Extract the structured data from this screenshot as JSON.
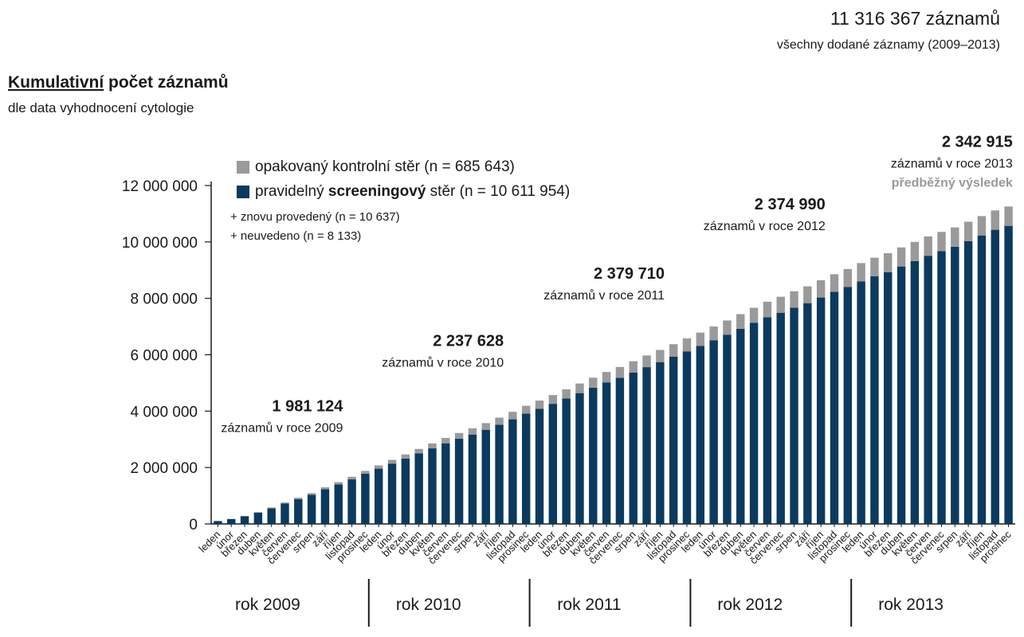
{
  "header": {
    "total": "11 316 367 záznamů",
    "subtitle": "všechny dodané záznamy (2009–2013)"
  },
  "title_underlined": "Kumulativní",
  "title_rest": " počet záznamů",
  "subtitle": "dle data vyhodnocení cytologie",
  "legend": {
    "grey_label": "opakovaný kontrolní stěr (n = 685 643)",
    "blue_label_a": "pravidelný ",
    "blue_label_b": "screeningový",
    "blue_label_c": " stěr (n = 10 611 954)",
    "note1": "+ znovu provedený (n = 10 637)",
    "note2": "+ neuvedeno (n = 8 133)"
  },
  "colors": {
    "screening": "#0b3a5e",
    "control": "#9a9a9a",
    "axis": "#1a1a1a"
  },
  "chart_data": {
    "type": "bar",
    "stacked": true,
    "ylim": [
      0,
      12000000
    ],
    "yticks": [
      "0",
      "2 000 000",
      "4 000 000",
      "6 000 000",
      "8 000 000",
      "10 000 000",
      "12 000 000"
    ],
    "ytick_values": [
      0,
      2000000,
      4000000,
      6000000,
      8000000,
      10000000,
      12000000
    ],
    "month_labels": [
      "leden",
      "únor",
      "březen",
      "duben",
      "květen",
      "červen",
      "červenec",
      "srpen",
      "září",
      "říjen",
      "listopad",
      "prosinec"
    ],
    "years": [
      "rok 2009",
      "rok 2010",
      "rok 2011",
      "rok 2012",
      "rok 2013"
    ],
    "series": [
      {
        "name": "pravidelný screeningový stěr",
        "values": [
          100000,
          170000,
          270000,
          400000,
          550000,
          720000,
          880000,
          1030000,
          1230000,
          1400000,
          1580000,
          1780000,
          1960000,
          2140000,
          2320000,
          2500000,
          2680000,
          2860000,
          3020000,
          3170000,
          3340000,
          3520000,
          3710000,
          3910000,
          4080000,
          4260000,
          4450000,
          4640000,
          4830000,
          5020000,
          5180000,
          5370000,
          5560000,
          5740000,
          5930000,
          6120000,
          6310000,
          6510000,
          6710000,
          6920000,
          7130000,
          7330000,
          7490000,
          7670000,
          7830000,
          8030000,
          8230000,
          8400000,
          8600000,
          8780000,
          8930000,
          9130000,
          9320000,
          9510000,
          9670000,
          9830000,
          10030000,
          10230000,
          10430000,
          10570000
        ]
      },
      {
        "name": "opakovaný kontrolní stěr",
        "values": [
          5000,
          10000,
          15000,
          20000,
          30000,
          40000,
          50000,
          60000,
          70000,
          80000,
          90000,
          100000,
          115000,
          130000,
          145000,
          160000,
          175000,
          190000,
          205000,
          220000,
          235000,
          250000,
          265000,
          280000,
          295000,
          310000,
          325000,
          340000,
          355000,
          370000,
          385000,
          400000,
          415000,
          430000,
          445000,
          460000,
          475000,
          490000,
          505000,
          520000,
          535000,
          550000,
          565000,
          580000,
          595000,
          610000,
          625000,
          640000,
          650000,
          660000,
          670000,
          675000,
          680000,
          685000,
          685000,
          685000,
          686000,
          686000,
          686000,
          686000
        ]
      }
    ],
    "annotations": [
      {
        "value": "1 981 124",
        "text": "záznamů v roce 2009"
      },
      {
        "value": "2 237 628",
        "text": "záznamů v roce 2010"
      },
      {
        "value": "2 379 710",
        "text": "záznamů v roce 2011"
      },
      {
        "value": "2 374 990",
        "text": "záznamů v roce 2012"
      },
      {
        "value": "2 342 915",
        "text": "záznamů v roce 2013",
        "note": "předběžný výsledek"
      }
    ]
  }
}
